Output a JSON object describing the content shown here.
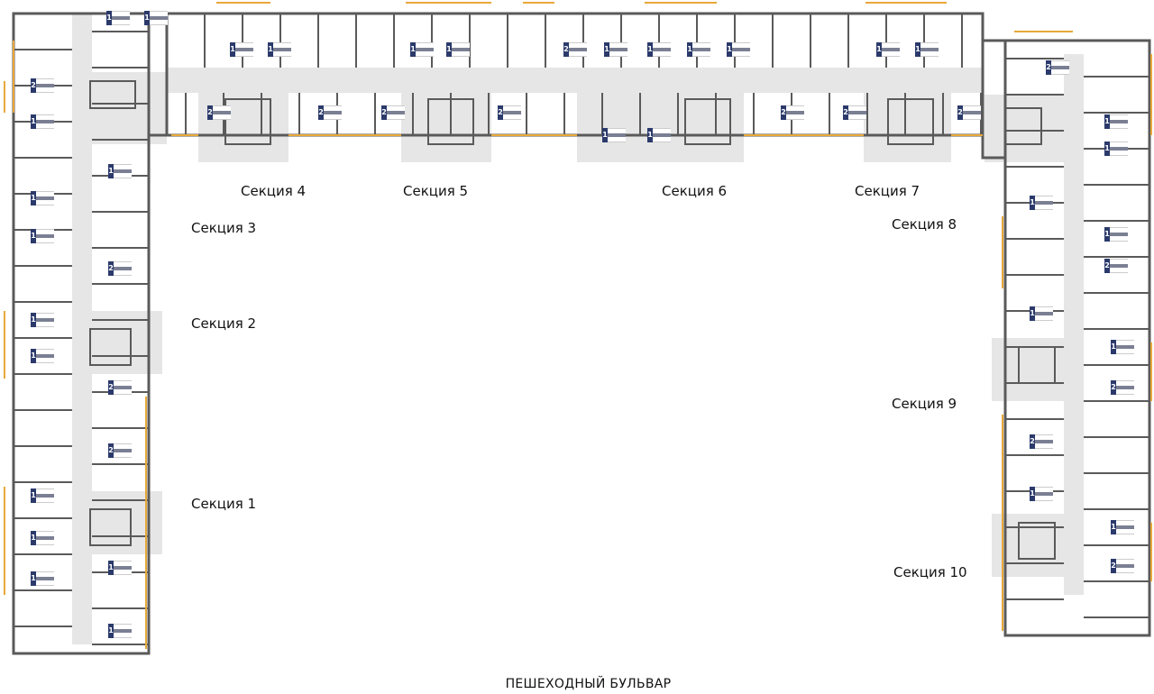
{
  "sections": [
    {
      "id": "4",
      "label": "Секция 4"
    },
    {
      "id": "5",
      "label": "Секция 5"
    },
    {
      "id": "6",
      "label": "Секция 6"
    },
    {
      "id": "7",
      "label": "Секция 7"
    },
    {
      "id": "3",
      "label": "Секция 3"
    },
    {
      "id": "8",
      "label": "Секция 8"
    },
    {
      "id": "2",
      "label": "Секция 2"
    },
    {
      "id": "9",
      "label": "Секция 9"
    },
    {
      "id": "1",
      "label": "Секция 1"
    },
    {
      "id": "10",
      "label": "Секция 10"
    }
  ],
  "street_label": "ПЕШЕХОДНЫЙ БУЛЬВАР",
  "apartment_room_counts": [
    2,
    1,
    1,
    1,
    1,
    2,
    1,
    1,
    2,
    2,
    1,
    1,
    1,
    1,
    1,
    1,
    1,
    1,
    1,
    1,
    1,
    2,
    1,
    1,
    1,
    1,
    1,
    1,
    2,
    1,
    2,
    2,
    2,
    2,
    1,
    1,
    2,
    2,
    2,
    1,
    1,
    1,
    2,
    1,
    1,
    2,
    2,
    1,
    1,
    2
  ],
  "colors": {
    "wall": "#5a5a5a",
    "corridor": "#e6e6e6",
    "balcony": "#e8a83a",
    "tag": "#2b3a6b"
  }
}
